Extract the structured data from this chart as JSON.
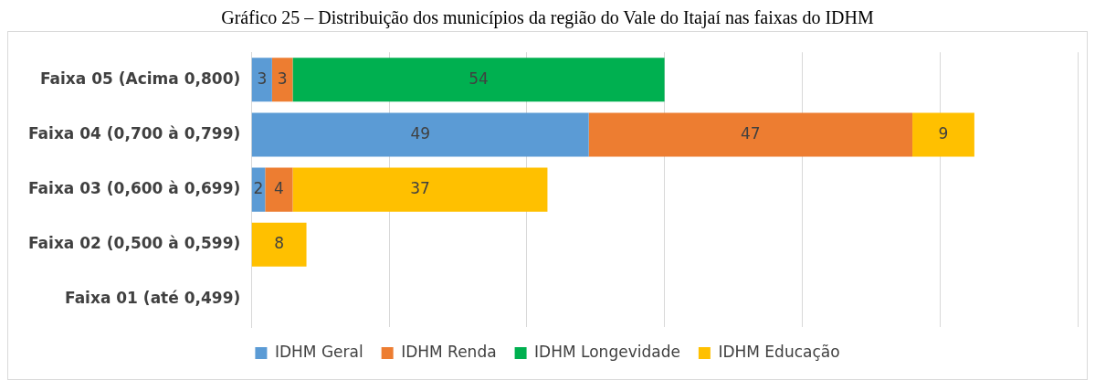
{
  "chart_data": {
    "type": "bar",
    "orientation": "horizontal",
    "stacked": true,
    "title": "Gráfico 25 – Distribuição dos municípios da região do Vale do Itajaí nas faixas do IDHM",
    "categories": [
      "Faixa 05 (Acima 0,800)",
      "Faixa 04 (0,700 à 0,799)",
      "Faixa 03 (0,600 à 0,699)",
      "Faixa 02 (0,500 à 0,599)",
      "Faixa 01 (até 0,499)"
    ],
    "series": [
      {
        "name": "IDHM Geral",
        "color": "#5b9bd5",
        "values": [
          3,
          49,
          2,
          null,
          null
        ]
      },
      {
        "name": "IDHM Renda",
        "color": "#ed7d31",
        "values": [
          3,
          47,
          4,
          null,
          null
        ]
      },
      {
        "name": "IDHM Longevidade",
        "color": "#00b050",
        "values": [
          54,
          null,
          null,
          null,
          null
        ]
      },
      {
        "name": "IDHM Educação",
        "color": "#ffc000",
        "values": [
          null,
          9,
          37,
          8,
          null
        ]
      }
    ],
    "xlim": [
      0,
      120
    ],
    "xticks": [
      {
        "value": 0,
        "label": null
      },
      {
        "value": 20,
        "label": null
      },
      {
        "value": 40,
        "label": null
      },
      {
        "value": 60,
        "label": null
      },
      {
        "value": 80,
        "label": null
      },
      {
        "value": 100,
        "label": null
      },
      {
        "value": 120,
        "label": null
      }
    ],
    "tick_labels": "y",
    "grid": "x",
    "legend": "bottom",
    "data_labels": true
  }
}
